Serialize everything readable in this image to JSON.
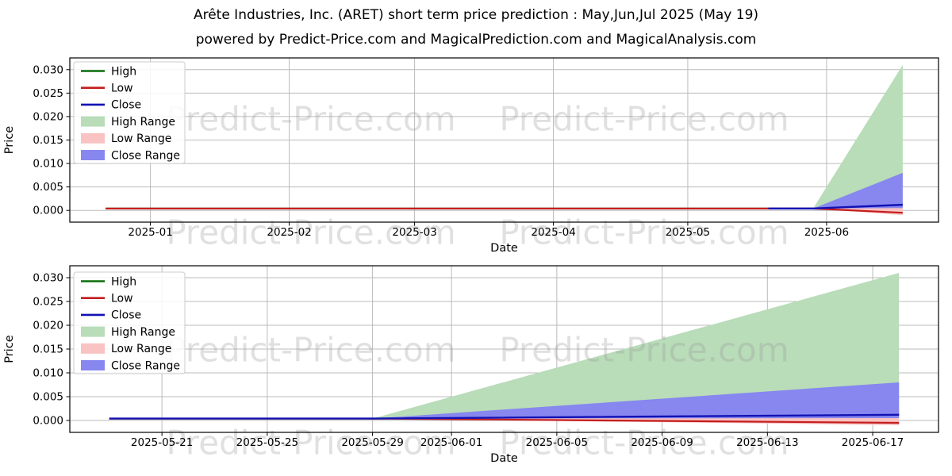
{
  "header": {
    "title": "Arête Industries, Inc. (ARET) short term price prediction : May,Jun,Jul 2025 (May 19)",
    "subtitle": "powered by Predict-Price.com and MagicalPrediction.com and MagicalAnalysis.com"
  },
  "watermark": {
    "text": "Predict-Price.com"
  },
  "colors": {
    "high_line": "#0b6e0b",
    "low_line": "#c41e1e",
    "close_line": "#1212b4",
    "high_range_fill": "#b9dcb9",
    "low_range_fill": "#f9c3c3",
    "close_range_fill": "#8787ef",
    "grid": "#bbbbbb",
    "axis": "#000000",
    "tick_text": "#000000",
    "watermark": "#999999",
    "legend_border": "#cccccc"
  },
  "legend": {
    "items": [
      {
        "label": "High",
        "swatch": "line",
        "color_key": "high_line"
      },
      {
        "label": "Low",
        "swatch": "line",
        "color_key": "low_line"
      },
      {
        "label": "Close",
        "swatch": "line",
        "color_key": "close_line"
      },
      {
        "label": "High Range",
        "swatch": "fill",
        "color_key": "high_range_fill"
      },
      {
        "label": "Low Range",
        "swatch": "fill",
        "color_key": "low_range_fill"
      },
      {
        "label": "Close Range",
        "swatch": "fill",
        "color_key": "close_range_fill"
      }
    ]
  },
  "chart_data": [
    {
      "id": "full-history-chart",
      "type": "line",
      "xlabel": "Date",
      "ylabel": "Price",
      "grid": true,
      "legend_position": "upper-left",
      "x_range": [
        "2024-12-14",
        "2025-06-26"
      ],
      "y_range": [
        -0.0025,
        0.0325
      ],
      "x_ticks": [
        {
          "date": "2025-01-01",
          "label": "2025-01"
        },
        {
          "date": "2025-02-01",
          "label": "2025-02"
        },
        {
          "date": "2025-03-01",
          "label": "2025-03"
        },
        {
          "date": "2025-04-01",
          "label": "2025-04"
        },
        {
          "date": "2025-05-01",
          "label": "2025-05"
        },
        {
          "date": "2025-06-01",
          "label": "2025-06"
        }
      ],
      "y_ticks": [
        {
          "value": 0.0,
          "label": "0.000"
        },
        {
          "value": 0.005,
          "label": "0.005"
        },
        {
          "value": 0.01,
          "label": "0.010"
        },
        {
          "value": 0.015,
          "label": "0.015"
        },
        {
          "value": 0.02,
          "label": "0.020"
        },
        {
          "value": 0.025,
          "label": "0.025"
        },
        {
          "value": 0.03,
          "label": "0.030"
        }
      ],
      "series": [
        {
          "name": "High",
          "color_key": "high_line",
          "points": [
            [
              "2024-12-22",
              0.0004
            ],
            [
              "2025-05-29",
              0.0004
            ],
            [
              "2025-06-18",
              0.0013
            ]
          ]
        },
        {
          "name": "Low",
          "color_key": "low_line",
          "points": [
            [
              "2024-12-22",
              0.0004
            ],
            [
              "2025-05-29",
              0.0004
            ],
            [
              "2025-06-18",
              -0.0005
            ]
          ]
        },
        {
          "name": "Close",
          "color_key": "close_line",
          "points": [
            [
              "2025-05-19",
              0.0004
            ],
            [
              "2025-05-29",
              0.0004
            ],
            [
              "2025-06-18",
              0.0012
            ]
          ]
        }
      ],
      "bands": [
        {
          "name": "High Range",
          "color_key": "high_range_fill",
          "upper": [
            [
              "2025-05-29",
              0.0004
            ],
            [
              "2025-06-18",
              0.031
            ]
          ],
          "lower": [
            [
              "2025-05-29",
              0.0004
            ],
            [
              "2025-06-18",
              0.0
            ]
          ]
        },
        {
          "name": "Low Range",
          "color_key": "low_range_fill",
          "upper": [
            [
              "2025-05-29",
              0.0004
            ],
            [
              "2025-06-18",
              0.0008
            ]
          ],
          "lower": [
            [
              "2025-05-29",
              0.0004
            ],
            [
              "2025-06-18",
              -0.001
            ]
          ]
        },
        {
          "name": "Close Range",
          "color_key": "close_range_fill",
          "upper": [
            [
              "2025-05-29",
              0.0004
            ],
            [
              "2025-06-18",
              0.008
            ]
          ],
          "lower": [
            [
              "2025-05-29",
              0.0004
            ],
            [
              "2025-06-18",
              0.0005
            ]
          ]
        }
      ]
    },
    {
      "id": "prediction-zoom-chart",
      "type": "line",
      "xlabel": "Date",
      "ylabel": "Price",
      "grid": true,
      "legend_position": "upper-left",
      "x_range": [
        "2025-05-17T12:00",
        "2025-06-19T12:00"
      ],
      "y_range": [
        -0.0025,
        0.0325
      ],
      "x_ticks": [
        {
          "date": "2025-05-21",
          "label": "2025-05-21"
        },
        {
          "date": "2025-05-25",
          "label": "2025-05-25"
        },
        {
          "date": "2025-05-29",
          "label": "2025-05-29"
        },
        {
          "date": "2025-06-01",
          "label": "2025-06-01"
        },
        {
          "date": "2025-06-05",
          "label": "2025-06-05"
        },
        {
          "date": "2025-06-09",
          "label": "2025-06-09"
        },
        {
          "date": "2025-06-13",
          "label": "2025-06-13"
        },
        {
          "date": "2025-06-17",
          "label": "2025-06-17"
        }
      ],
      "y_ticks": [
        {
          "value": 0.0,
          "label": "0.000"
        },
        {
          "value": 0.005,
          "label": "0.005"
        },
        {
          "value": 0.01,
          "label": "0.010"
        },
        {
          "value": 0.015,
          "label": "0.015"
        },
        {
          "value": 0.02,
          "label": "0.020"
        },
        {
          "value": 0.025,
          "label": "0.025"
        },
        {
          "value": 0.03,
          "label": "0.030"
        }
      ],
      "series": [
        {
          "name": "High",
          "color_key": "high_line",
          "points": [
            [
              "2025-05-19",
              0.0004
            ],
            [
              "2025-05-29",
              0.0004
            ],
            [
              "2025-06-18",
              0.0013
            ]
          ]
        },
        {
          "name": "Low",
          "color_key": "low_line",
          "points": [
            [
              "2025-05-19",
              0.0004
            ],
            [
              "2025-05-29",
              0.0004
            ],
            [
              "2025-06-18",
              -0.0005
            ]
          ]
        },
        {
          "name": "Close",
          "color_key": "close_line",
          "points": [
            [
              "2025-05-19",
              0.0004
            ],
            [
              "2025-05-29",
              0.0004
            ],
            [
              "2025-06-18",
              0.0012
            ]
          ]
        }
      ],
      "bands": [
        {
          "name": "High Range",
          "color_key": "high_range_fill",
          "upper": [
            [
              "2025-05-29",
              0.0004
            ],
            [
              "2025-06-18",
              0.031
            ]
          ],
          "lower": [
            [
              "2025-05-29",
              0.0004
            ],
            [
              "2025-06-18",
              0.0
            ]
          ]
        },
        {
          "name": "Low Range",
          "color_key": "low_range_fill",
          "upper": [
            [
              "2025-05-29",
              0.0004
            ],
            [
              "2025-06-18",
              0.0008
            ]
          ],
          "lower": [
            [
              "2025-05-29",
              0.0004
            ],
            [
              "2025-06-18",
              -0.001
            ]
          ]
        },
        {
          "name": "Close Range",
          "color_key": "close_range_fill",
          "upper": [
            [
              "2025-05-29",
              0.0004
            ],
            [
              "2025-06-18",
              0.008
            ]
          ],
          "lower": [
            [
              "2025-05-29",
              0.0004
            ],
            [
              "2025-06-18",
              0.0005
            ]
          ]
        }
      ]
    }
  ]
}
